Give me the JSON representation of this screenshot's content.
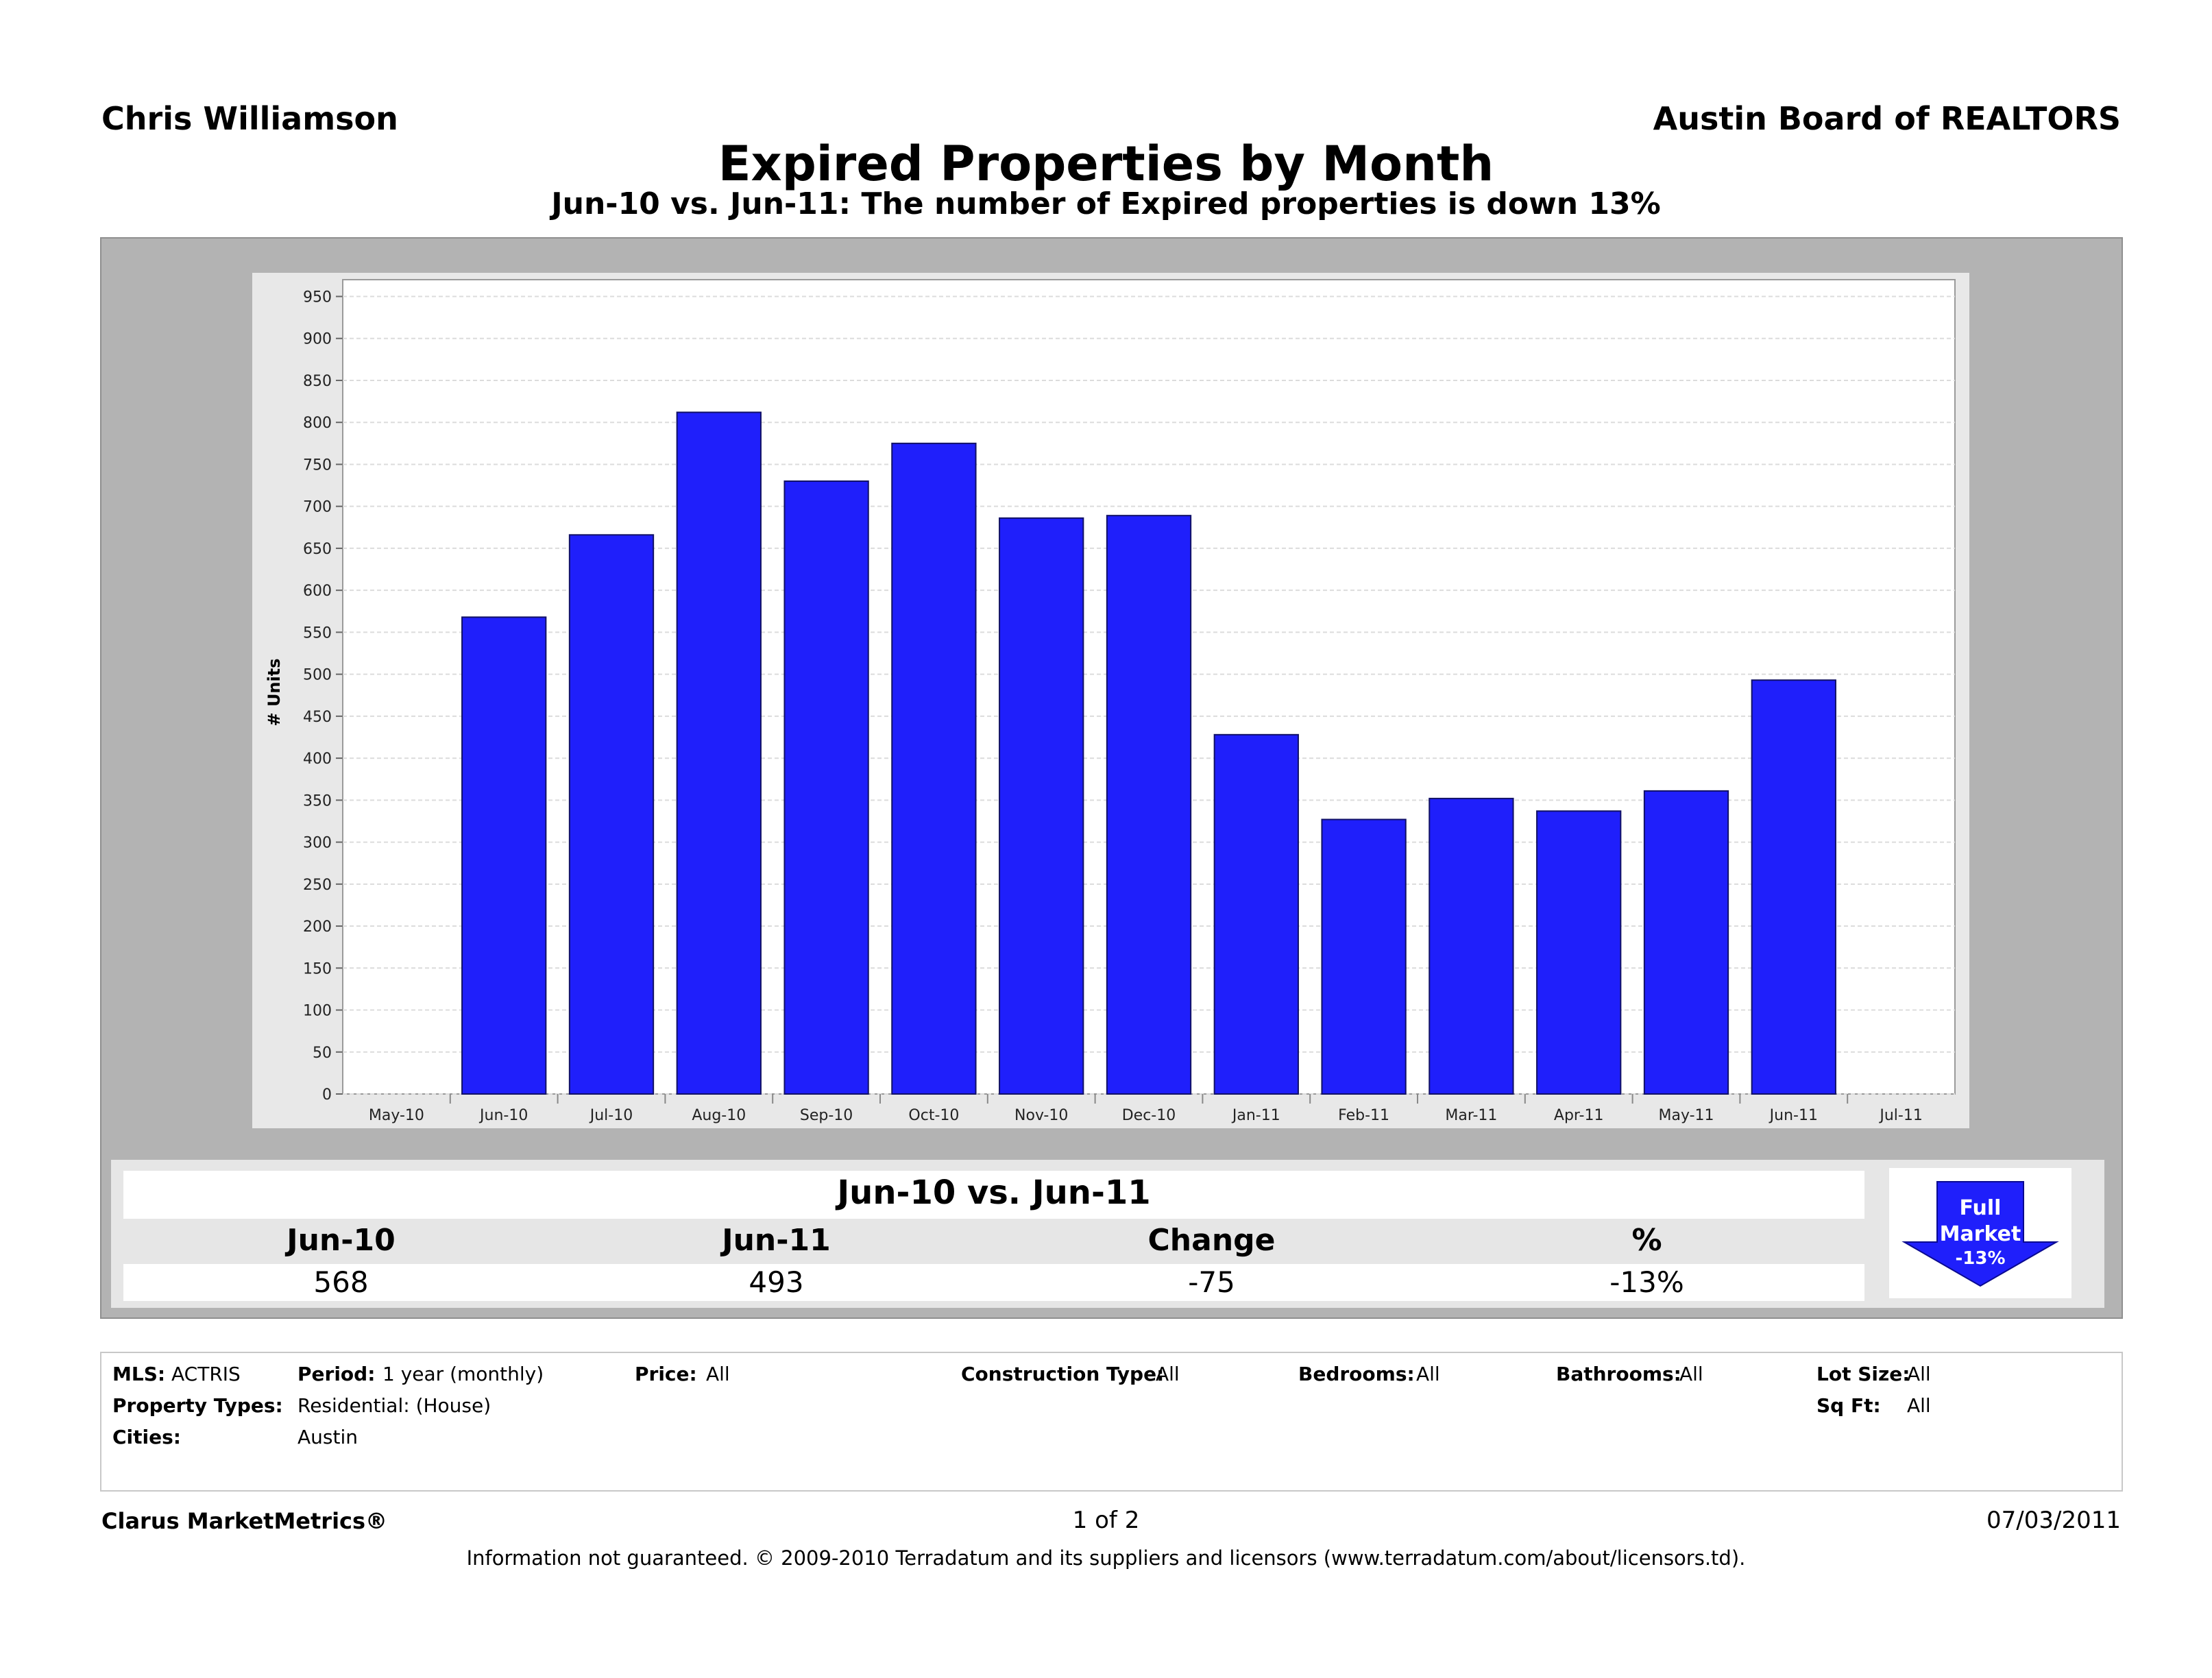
{
  "header": {
    "agent": "Chris Williamson",
    "board": "Austin Board of REALTORS",
    "title": "Expired Properties by Month",
    "subtitle": "Jun-10 vs. Jun-11: The number of Expired properties is down 13%"
  },
  "chart_data": {
    "type": "bar",
    "categories": [
      "May-10",
      "Jun-10",
      "Jul-10",
      "Aug-10",
      "Sep-10",
      "Oct-10",
      "Nov-10",
      "Dec-10",
      "Jan-11",
      "Feb-11",
      "Mar-11",
      "Apr-11",
      "May-11",
      "Jun-11",
      "Jul-11"
    ],
    "values": [
      null,
      568,
      666,
      812,
      730,
      775,
      686,
      689,
      428,
      327,
      352,
      337,
      361,
      493,
      null
    ],
    "ylabel": "# Units",
    "xlabel": "",
    "ylim": [
      0,
      970
    ],
    "yticks": [
      0,
      50,
      100,
      150,
      200,
      250,
      300,
      350,
      400,
      450,
      500,
      550,
      600,
      650,
      700,
      750,
      800,
      850,
      900,
      950
    ],
    "grid": true,
    "colors": {
      "bar": "#1f1ffb",
      "plot_bg": "#ffffff",
      "panel_bg": "#b3b3b3",
      "frame_bg": "#e8e8e8",
      "grid": "#dcdcdc"
    }
  },
  "summary": {
    "title": "Jun-10 vs. Jun-11",
    "headers": [
      "Jun-10",
      "Jun-11",
      "Change",
      "%"
    ],
    "values": [
      "568",
      "493",
      "-75",
      "-13%"
    ],
    "badge": {
      "line1": "Full",
      "line2": "Market",
      "line3": "-13%",
      "icon": "down-arrow-icon",
      "color": "#1f1ffb"
    }
  },
  "filters": {
    "mls_label": "MLS:",
    "mls_value": "ACTRIS",
    "period_label": "Period:",
    "period_value": "1 year (monthly)",
    "price_label": "Price:",
    "price_value": "All",
    "construction_label": "Construction Type:",
    "construction_value": "All",
    "bedrooms_label": "Bedrooms:",
    "bedrooms_value": "All",
    "bathrooms_label": "Bathrooms:",
    "bathrooms_value": "All",
    "lotsize_label": "Lot Size:",
    "lotsize_value": "All",
    "proptypes_label": "Property Types:",
    "proptypes_value": "Residential: (House)",
    "sqft_label": "Sq Ft:",
    "sqft_value": "All",
    "cities_label": "Cities:",
    "cities_value": "Austin"
  },
  "footer": {
    "brand": "Clarus MarketMetrics®",
    "page": "1 of 2",
    "date": "07/03/2011",
    "disclaimer": "Information not guaranteed.  © 2009-2010 Terradatum and its suppliers and licensors (www.terradatum.com/about/licensors.td)."
  }
}
